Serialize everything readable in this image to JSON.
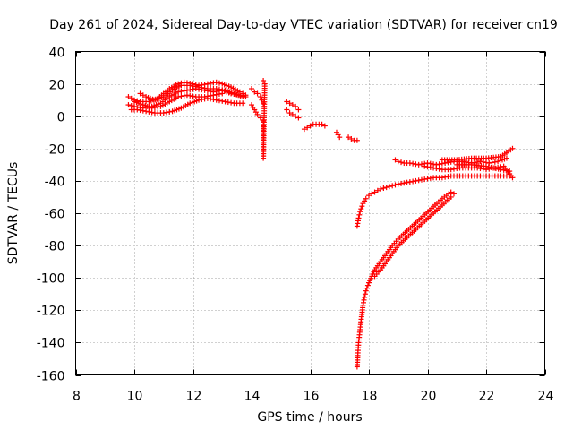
{
  "chart_data": {
    "type": "scatter",
    "title": "Day 261 of 2024, Sidereal Day-to-day VTEC variation (SDTVAR) for receiver cn19",
    "xlabel": "GPS time / hours",
    "ylabel": "SDTVAR / TECUs",
    "xlim": [
      8,
      24
    ],
    "ylim": [
      -160,
      40
    ],
    "xticks": [
      8,
      10,
      12,
      14,
      16,
      18,
      20,
      22,
      24
    ],
    "yticks": [
      -160,
      -140,
      -120,
      -100,
      -80,
      -60,
      -40,
      -20,
      0,
      20,
      40
    ],
    "grid": true,
    "marker": "+",
    "series_color": "#ff0000",
    "tracks": [
      {
        "x": [
          9.8,
          10.0,
          10.2,
          10.5,
          10.8,
          11.0,
          11.2,
          11.5,
          11.7,
          12.0,
          12.2,
          12.5,
          12.8,
          13.0,
          13.3,
          13.6,
          13.8
        ],
        "y": [
          12,
          10,
          9,
          9,
          11,
          14,
          17,
          20,
          21,
          20,
          19,
          20,
          21,
          20,
          18,
          15,
          13
        ]
      },
      {
        "x": [
          9.8,
          10.0,
          10.3,
          10.6,
          10.9,
          11.2,
          11.5,
          11.8,
          12.1,
          12.4,
          12.7,
          13.0,
          13.3,
          13.6,
          13.8
        ],
        "y": [
          7,
          6,
          5,
          6,
          8,
          12,
          15,
          16,
          17,
          16,
          15,
          16,
          14,
          13,
          12
        ]
      },
      {
        "x": [
          9.9,
          10.1,
          10.4,
          10.7,
          11.0,
          11.3,
          11.6,
          11.9,
          12.2,
          12.5,
          12.8,
          13.1,
          13.4,
          13.7
        ],
        "y": [
          4,
          4,
          3,
          2,
          2,
          3,
          5,
          8,
          10,
          11,
          10,
          9,
          8,
          8
        ]
      },
      {
        "x": [
          10.0,
          10.3,
          10.6,
          10.9,
          11.2,
          11.5,
          11.8,
          12.1,
          12.4,
          12.7,
          13.0
        ],
        "y": [
          9,
          7,
          5,
          6,
          9,
          12,
          13,
          12,
          12,
          13,
          14
        ]
      },
      {
        "x": [
          10.2,
          10.4,
          10.7,
          11.0,
          11.3,
          11.6,
          11.9,
          12.2,
          12.5,
          12.8,
          13.1,
          13.4,
          13.7
        ],
        "y": [
          14,
          12,
          10,
          12,
          16,
          19,
          19,
          18,
          17,
          17,
          16,
          14,
          12
        ]
      },
      {
        "x": [
          14.0,
          14.1,
          14.2,
          14.3,
          14.35,
          14.4
        ],
        "y": [
          17,
          15,
          14,
          12,
          10,
          8
        ]
      },
      {
        "x": [
          14.0,
          14.1,
          14.2,
          14.3,
          14.4
        ],
        "y": [
          7,
          4,
          1,
          -1,
          -3
        ]
      },
      {
        "x": [
          14.4,
          14.4,
          14.45,
          14.4
        ],
        "y": [
          -6,
          -26,
          20,
          22
        ]
      },
      {
        "x": [
          15.2,
          15.3,
          15.4,
          15.5,
          15.6
        ],
        "y": [
          9,
          8,
          7,
          6,
          4
        ]
      },
      {
        "x": [
          15.2,
          15.3,
          15.4,
          15.5,
          15.6
        ],
        "y": [
          4,
          2,
          1,
          0,
          -1
        ]
      },
      {
        "x": [
          15.8,
          15.9,
          16.0,
          16.1,
          16.2,
          16.3,
          16.4,
          16.5
        ],
        "y": [
          -8,
          -7,
          -6,
          -5,
          -5,
          -5,
          -5,
          -6
        ]
      },
      {
        "x": [
          16.9,
          17.0
        ],
        "y": [
          -10,
          -13
        ]
      },
      {
        "x": [
          17.3,
          17.4,
          17.5,
          17.6
        ],
        "y": [
          -13,
          -14,
          -15,
          -15
        ]
      },
      {
        "x": [
          17.6,
          17.65,
          17.7,
          17.8,
          17.9,
          18.0,
          18.2,
          18.4,
          18.6,
          18.8,
          19.0,
          19.3,
          19.6,
          19.9,
          20.2,
          20.5,
          20.8,
          21.0,
          21.3,
          21.6,
          21.9,
          22.2,
          22.5,
          22.8
        ],
        "y": [
          -68,
          -63,
          -59,
          -54,
          -51,
          -49,
          -47,
          -45,
          -44,
          -43,
          -42,
          -41,
          -40,
          -39,
          -38,
          -38,
          -37,
          -37,
          -37,
          -37,
          -37,
          -37,
          -37,
          -37
        ]
      },
      {
        "x": [
          18.9,
          19.0,
          19.2,
          19.4,
          19.7,
          20.0,
          20.3,
          20.6,
          20.9,
          21.2,
          21.5,
          21.8,
          22.1,
          22.4,
          22.7
        ],
        "y": [
          -27,
          -28,
          -29,
          -29,
          -30,
          -29,
          -30,
          -29,
          -28,
          -28,
          -29,
          -28,
          -29,
          -28,
          -26
        ]
      },
      {
        "x": [
          19.9,
          20.2,
          20.5,
          20.8,
          21.1,
          21.4,
          21.7,
          22.0,
          22.3,
          22.6,
          22.9
        ],
        "y": [
          -31,
          -32,
          -33,
          -33,
          -32,
          -32,
          -32,
          -33,
          -32,
          -31,
          -38
        ]
      },
      {
        "x": [
          20.5,
          21.0,
          21.5,
          22.0,
          22.5,
          22.9
        ],
        "y": [
          -27,
          -27,
          -26,
          -26,
          -25,
          -20
        ]
      },
      {
        "x": [
          21.0,
          21.5,
          22.0,
          22.5,
          22.8
        ],
        "y": [
          -30,
          -30,
          -31,
          -33,
          -34
        ]
      },
      {
        "x": [
          17.6,
          17.62,
          17.65,
          17.7,
          17.75,
          17.8,
          17.85,
          17.9,
          18.0,
          18.1,
          18.2,
          18.4,
          18.6,
          18.8,
          19.0,
          19.3,
          19.6,
          19.9,
          20.2,
          20.5,
          20.8
        ],
        "y": [
          -155,
          -148,
          -140,
          -132,
          -124,
          -117,
          -112,
          -108,
          -103,
          -99,
          -95,
          -90,
          -85,
          -80,
          -76,
          -71,
          -66,
          -61,
          -56,
          -51,
          -47
        ]
      },
      {
        "x": [
          18.2,
          18.4,
          18.6,
          18.8,
          19.0,
          19.3,
          19.6,
          19.9,
          20.2,
          20.5,
          20.8,
          20.9
        ],
        "y": [
          -99,
          -95,
          -90,
          -85,
          -80,
          -75,
          -70,
          -65,
          -60,
          -55,
          -50,
          -48
        ]
      }
    ]
  }
}
